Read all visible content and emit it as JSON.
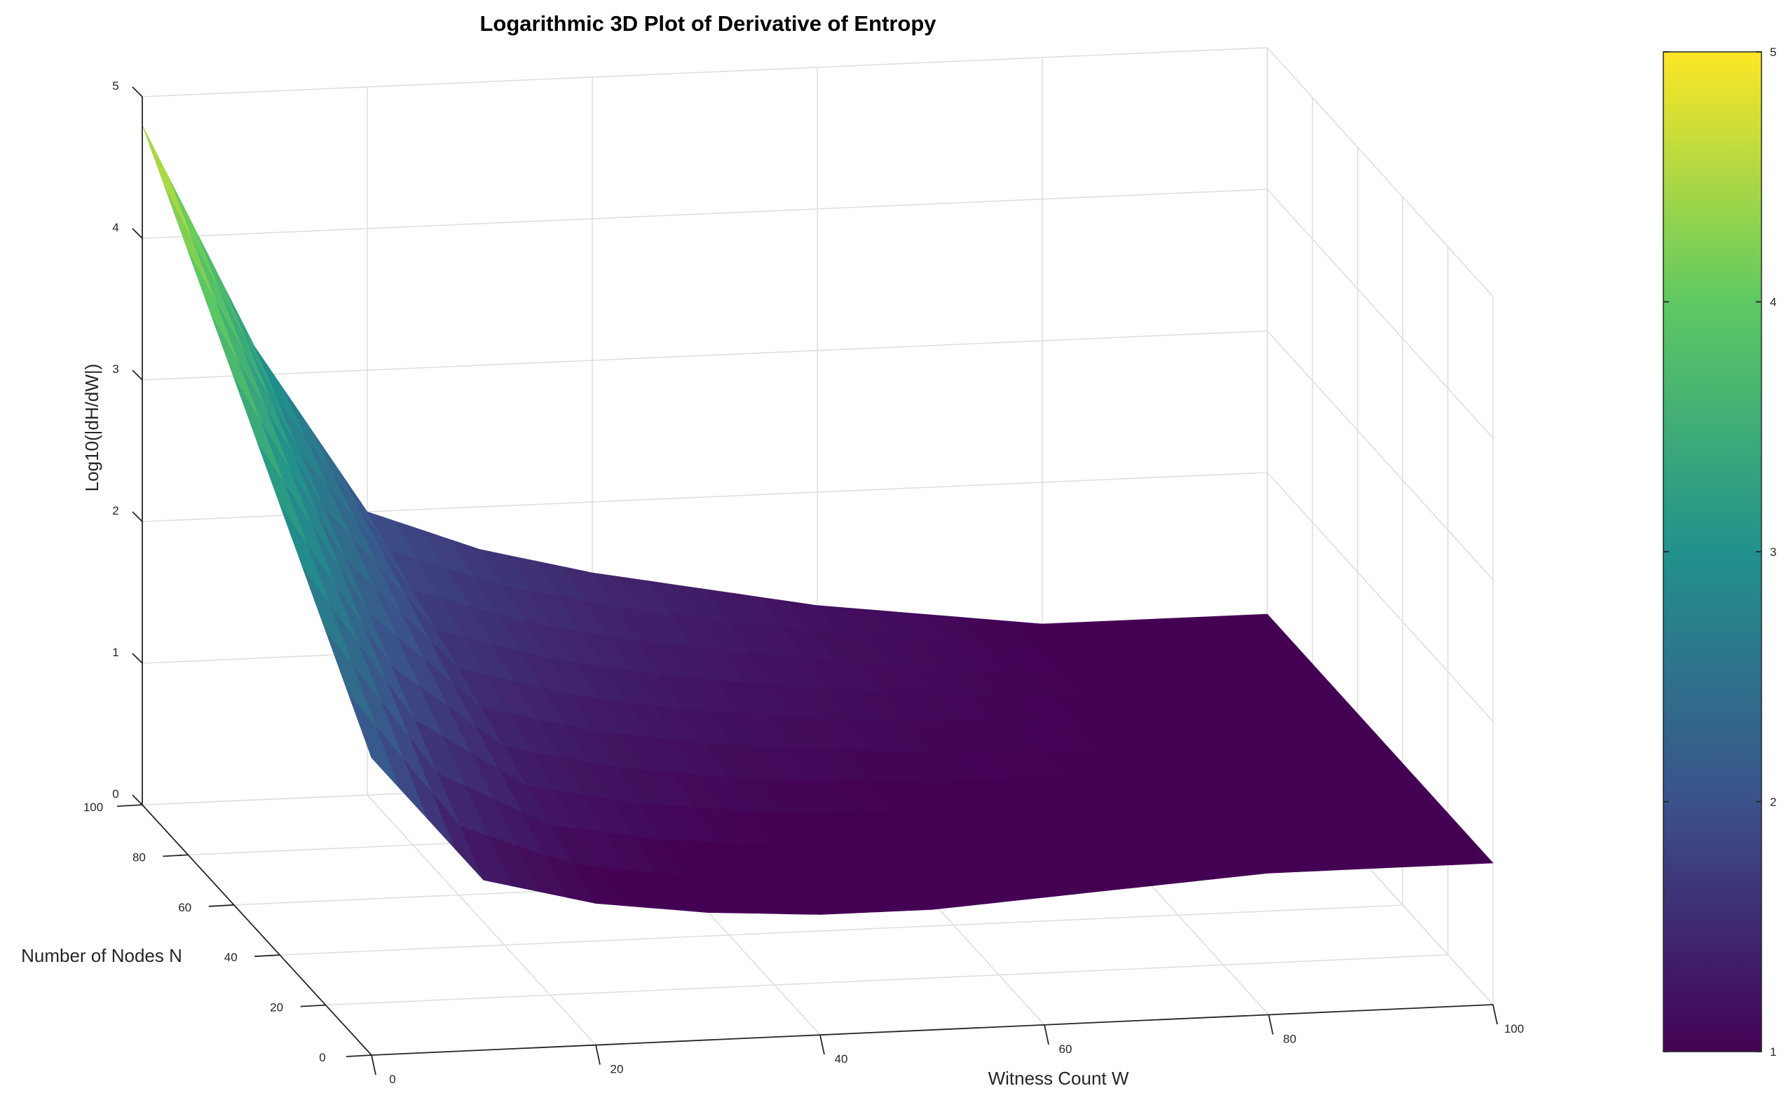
{
  "chart_data": {
    "type": "surface",
    "title": "Logarithmic 3D Plot of Derivative of Entropy",
    "xlabel": "Witness Count W",
    "ylabel": "Number of Nodes N",
    "zlabel": "Log10(|dH/dW|)",
    "x_ticks": [
      "0",
      "20",
      "40",
      "60",
      "80",
      "100"
    ],
    "y_ticks": [
      "0",
      "20",
      "40",
      "60",
      "80",
      "100"
    ],
    "z_ticks": [
      "0",
      "1",
      "2",
      "3",
      "4",
      "5"
    ],
    "xlim": [
      0,
      100
    ],
    "ylim": [
      0,
      100
    ],
    "zlim": [
      0,
      5
    ],
    "grid": true,
    "colormap": "viridis",
    "colorbar": {
      "ticks": [
        "1",
        "2",
        "3",
        "4",
        "5"
      ],
      "lim": [
        1,
        5
      ]
    },
    "surface_profile": {
      "description_w": [
        0,
        10,
        20,
        30,
        40,
        50,
        60,
        70,
        80,
        90,
        100
      ],
      "log10_at_N100": [
        4.8,
        3.2,
        2.0,
        1.7,
        1.5,
        1.35,
        1.2,
        1.1,
        1.0,
        1.0,
        1.0
      ],
      "log10_at_N0": [
        2.1,
        1.2,
        1.0,
        0.9,
        0.85,
        0.85,
        0.9,
        0.95,
        1.0,
        1.0,
        1.0
      ]
    }
  }
}
